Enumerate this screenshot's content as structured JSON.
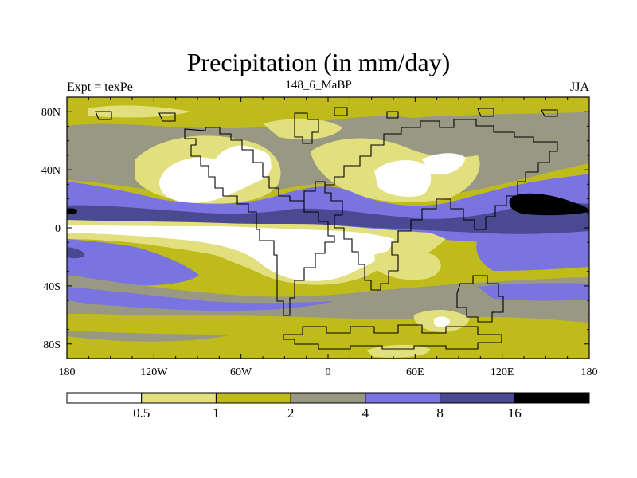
{
  "title": "Precipitation (in mm/day)",
  "left_string": "Expt = texPe",
  "center_string": "148_6_MaBP",
  "right_string": "JJA",
  "x_ticks": [
    {
      "value": -180,
      "label": "180"
    },
    {
      "value": -120,
      "label": "120W"
    },
    {
      "value": -60,
      "label": "60W"
    },
    {
      "value": 0,
      "label": "0"
    },
    {
      "value": 60,
      "label": "60E"
    },
    {
      "value": 120,
      "label": "120E"
    },
    {
      "value": 180,
      "label": "180"
    }
  ],
  "y_ticks": [
    {
      "value": 80,
      "label": "80N"
    },
    {
      "value": 40,
      "label": "40N"
    },
    {
      "value": 0,
      "label": "0"
    },
    {
      "value": -40,
      "label": "40S"
    },
    {
      "value": -80,
      "label": "80S"
    }
  ],
  "colorbar": {
    "levels": [
      "0.5",
      "1",
      "2",
      "4",
      "8",
      "16"
    ],
    "colors": [
      "#ffffff",
      "#e2e07e",
      "#bfbb1a",
      "#999882",
      "#7a74e0",
      "#4a4a92",
      "#000000"
    ]
  },
  "colors": {
    "white": "#ffffff",
    "light_yellow": "#e2e07e",
    "olive": "#bfbb1a",
    "gray": "#999882",
    "lavender": "#7a74e0",
    "dark_blue": "#4a4a92",
    "black": "#000000"
  }
}
